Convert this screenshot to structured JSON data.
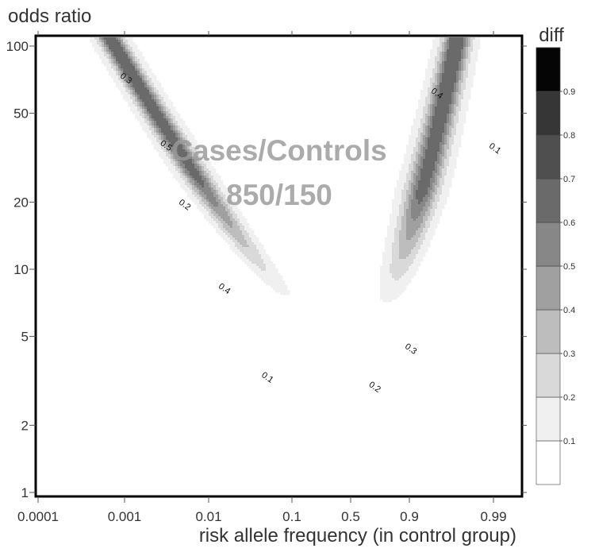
{
  "chart_data": {
    "type": "heatmap",
    "ylabel": "odds ratio",
    "xlabel": "risk allele frequency (in control group)",
    "x_ticks": [
      "0.0001",
      "0.001",
      "0.01",
      "0.1",
      "0.5",
      "0.9",
      "0.99"
    ],
    "y_ticks": [
      "100",
      "50",
      "20",
      "10",
      "5",
      "2",
      "1"
    ],
    "y_tick_values": [
      100,
      50,
      20,
      10,
      5,
      2,
      1
    ],
    "y_scale": "log",
    "ylim": [
      1,
      100
    ],
    "annotation_lines": [
      "Cases/Controls",
      "850/150"
    ],
    "colorbar": {
      "title": "diff",
      "levels": [
        0,
        0.1,
        0.2,
        0.3,
        0.4,
        0.5,
        0.6,
        0.7,
        0.8,
        0.9,
        1.0
      ],
      "tick_labels": [
        "0.1",
        "0.2",
        "0.3",
        "0.4",
        "0.5",
        "0.6",
        "0.7",
        "0.8",
        "0.9"
      ],
      "colors": [
        "#ffffff",
        "#f0f0f0",
        "#d9d9d9",
        "#bdbdbd",
        "#a0a0a0",
        "#878787",
        "#6a6a6a",
        "#4f4f4f",
        "#363636",
        "#1e1e1e",
        "#050505"
      ]
    },
    "contour_labels": [
      {
        "text": "0.3",
        "x": "0.001",
        "y": 70
      },
      {
        "text": "0.5",
        "x": "0.003",
        "y": 35
      },
      {
        "text": "0.2",
        "x": "0.005",
        "y": 19
      },
      {
        "text": "0.4",
        "x": "0.015",
        "y": 8
      },
      {
        "text": "0.1",
        "x": "0.05",
        "y": 3.2
      },
      {
        "text": "0.4",
        "x": "0.95",
        "y": 60
      },
      {
        "text": "0.1",
        "x": "0.99",
        "y": 34
      },
      {
        "text": "0.3",
        "x": "0.9",
        "y": 4.3
      },
      {
        "text": "0.2",
        "x": "0.7",
        "y": 2.9
      }
    ]
  }
}
